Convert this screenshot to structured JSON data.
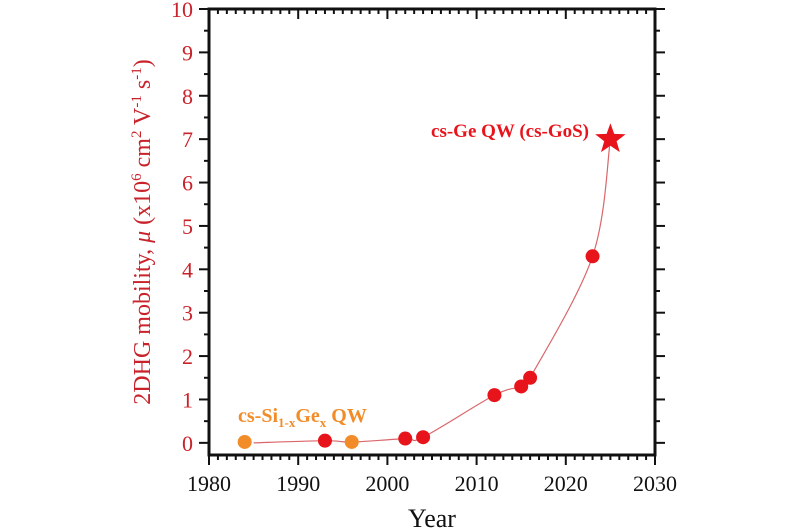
{
  "chart_data": {
    "type": "scatter",
    "title": "",
    "xlabel": "Year",
    "ylabel_parts": {
      "pre": "2DHG mobility, ",
      "mu": "μ",
      "open": " (x10",
      "e6": "6",
      "cm": " cm",
      "e2": "2",
      "v": " V",
      "em1a": "-1",
      "s": " s",
      "em1b": "-1",
      "close": ")"
    },
    "xlim": [
      1980,
      2030
    ],
    "ylim": [
      -0.28,
      10
    ],
    "xticks": [
      1980,
      1990,
      2000,
      2010,
      2020,
      2030
    ],
    "yticks": [
      0,
      1,
      2,
      3,
      4,
      5,
      6,
      7,
      8,
      9,
      10
    ],
    "grid": false,
    "series": [
      {
        "name": "cs-SiGe QW",
        "color": "#f28c28",
        "marker": "circle",
        "x": [
          1984,
          1996
        ],
        "y": [
          0.02,
          0.02
        ]
      },
      {
        "name": "cs-Ge QW",
        "color": "#e8141c",
        "marker": "circle",
        "x": [
          1993,
          2002,
          2004,
          2012,
          2015,
          2016,
          2023
        ],
        "y": [
          0.05,
          0.1,
          0.13,
          1.1,
          1.3,
          1.5,
          4.3
        ]
      },
      {
        "name": "cs-Ge QW (cs-GoS)",
        "color": "#e8141c",
        "marker": "star",
        "x": [
          2025
        ],
        "y": [
          7.0
        ]
      }
    ],
    "annotations": {
      "sige": {
        "a": "cs-Si",
        "b": "1-x",
        "c": "Ge",
        "d": "x",
        "e": " QW"
      },
      "gos": "cs-Ge QW (cs-GoS)"
    },
    "colors": {
      "axis_label": "#c8222a",
      "trend": "#d9666a"
    }
  }
}
